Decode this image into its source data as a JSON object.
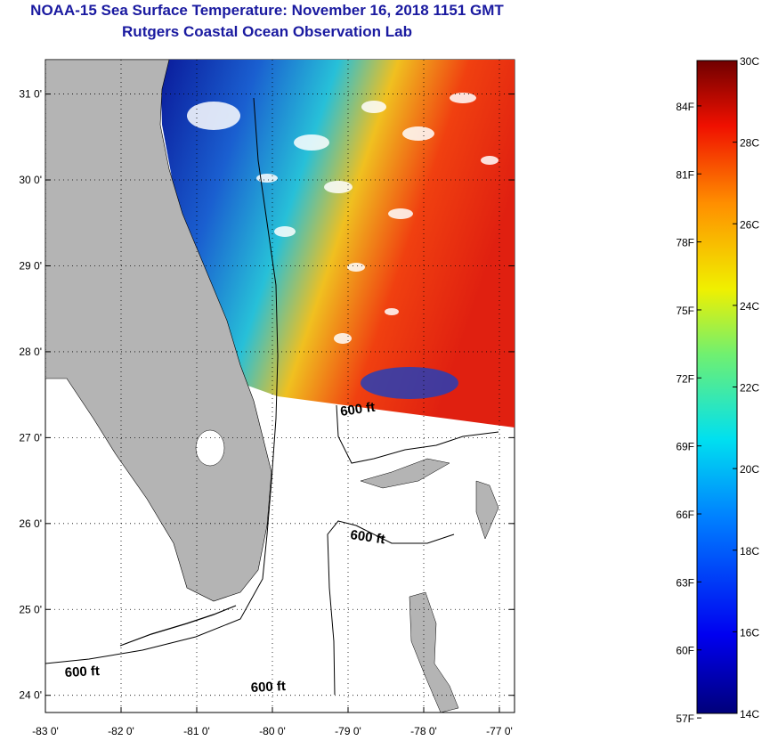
{
  "title_line1": "NOAA-15 Sea Surface Temperature:  November 16, 2018 1151 GMT",
  "title_line2": "Rutgers Coastal Ocean Observation Lab",
  "map": {
    "lon_range": [
      -83,
      -76.8
    ],
    "lat_range": [
      23.8,
      31.4
    ],
    "lon_ticks": [
      {
        "value": -83,
        "label": "-83 0'"
      },
      {
        "value": -82,
        "label": "-82 0'"
      },
      {
        "value": -81,
        "label": "-81 0'"
      },
      {
        "value": -80,
        "label": "-80 0'"
      },
      {
        "value": -79,
        "label": "-79 0'"
      },
      {
        "value": -78,
        "label": "-78 0'"
      },
      {
        "value": -77,
        "label": "-77 0'"
      }
    ],
    "lat_ticks": [
      {
        "value": 24,
        "label": "24 0'"
      },
      {
        "value": 25,
        "label": "25 0'"
      },
      {
        "value": 26,
        "label": "26 0'"
      },
      {
        "value": 27,
        "label": "27 0'"
      },
      {
        "value": 28,
        "label": "28 0'"
      },
      {
        "value": 29,
        "label": "29 0'"
      },
      {
        "value": 30,
        "label": "30 0'"
      },
      {
        "value": 31,
        "label": "31 0'"
      }
    ],
    "contour_labels": [
      "600 ft",
      "600 ft",
      "600 ft",
      "600 ft"
    ],
    "land_color": "#b4b4b4",
    "grid": true
  },
  "colorbar": {
    "celsius_range": [
      14,
      30
    ],
    "celsius_labels": [
      "30C",
      "28C",
      "26C",
      "24C",
      "22C",
      "20C",
      "18C",
      "16C",
      "14C"
    ],
    "fahrenheit_labels": [
      "84F",
      "81F",
      "78F",
      "75F",
      "72F",
      "69F",
      "66F",
      "63F",
      "60F",
      "57F"
    ]
  }
}
